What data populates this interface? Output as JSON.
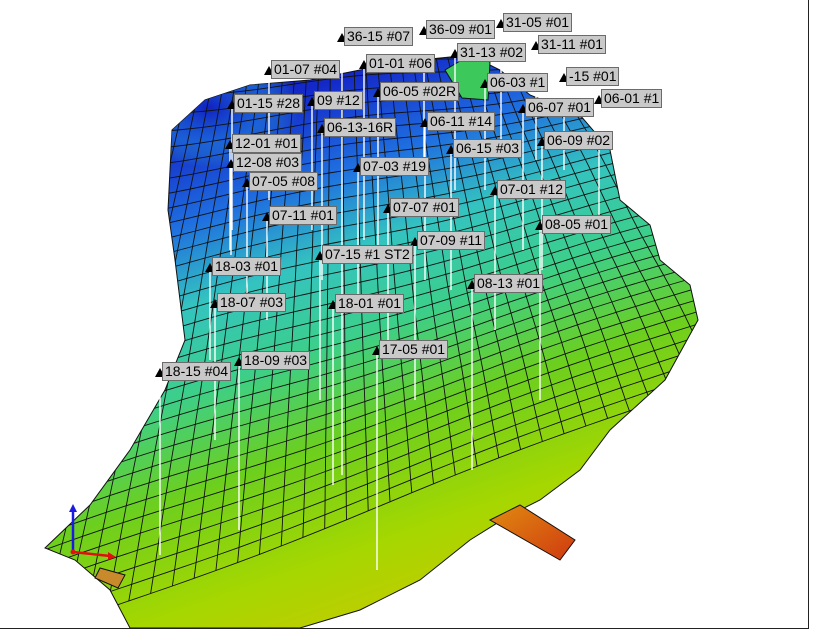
{
  "viewer": {
    "colors": {
      "low": "#1a2fd0",
      "mid": "#33c8a8",
      "high": "#8cd200",
      "hot": "#e07a10",
      "grid_line": "#111111",
      "well_stick": "#ffffff",
      "axis_x": "#e01010",
      "axis_y": "#1a1ae0"
    }
  },
  "wells": [
    {
      "name": "36-15 #07"
    },
    {
      "name": "36-09 #01"
    },
    {
      "name": "31-05 #01"
    },
    {
      "name": "31-13 #02"
    },
    {
      "name": "31-11 #01"
    },
    {
      "name": "01-07 #04"
    },
    {
      "name": "01-01 #06"
    },
    {
      "name": "06-03 #1"
    },
    {
      "name": "-15 #01"
    },
    {
      "name": "06-05 #02R"
    },
    {
      "name": "06-01 #1"
    },
    {
      "name": "01-15 #28"
    },
    {
      "name": "09 #12"
    },
    {
      "name": "06-07 #01"
    },
    {
      "name": "06-11 #14"
    },
    {
      "name": "06-13-16R"
    },
    {
      "name": "06-09 #02"
    },
    {
      "name": "12-01 #01"
    },
    {
      "name": "06-15 #03"
    },
    {
      "name": "12-08 #03"
    },
    {
      "name": "07-03 #19"
    },
    {
      "name": "07-05 #08"
    },
    {
      "name": "07-01 #12"
    },
    {
      "name": "07-07 #01"
    },
    {
      "name": "07-11 #01"
    },
    {
      "name": "08-05 #01"
    },
    {
      "name": "07-09 #11"
    },
    {
      "name": "07-15 #1 ST2"
    },
    {
      "name": "18-03 #01"
    },
    {
      "name": "08-13 #01"
    },
    {
      "name": "18-07 #03"
    },
    {
      "name": "18-01 #01"
    },
    {
      "name": "17-05 #01"
    },
    {
      "name": "18-09 #03"
    },
    {
      "name": "18-15 #04"
    }
  ]
}
